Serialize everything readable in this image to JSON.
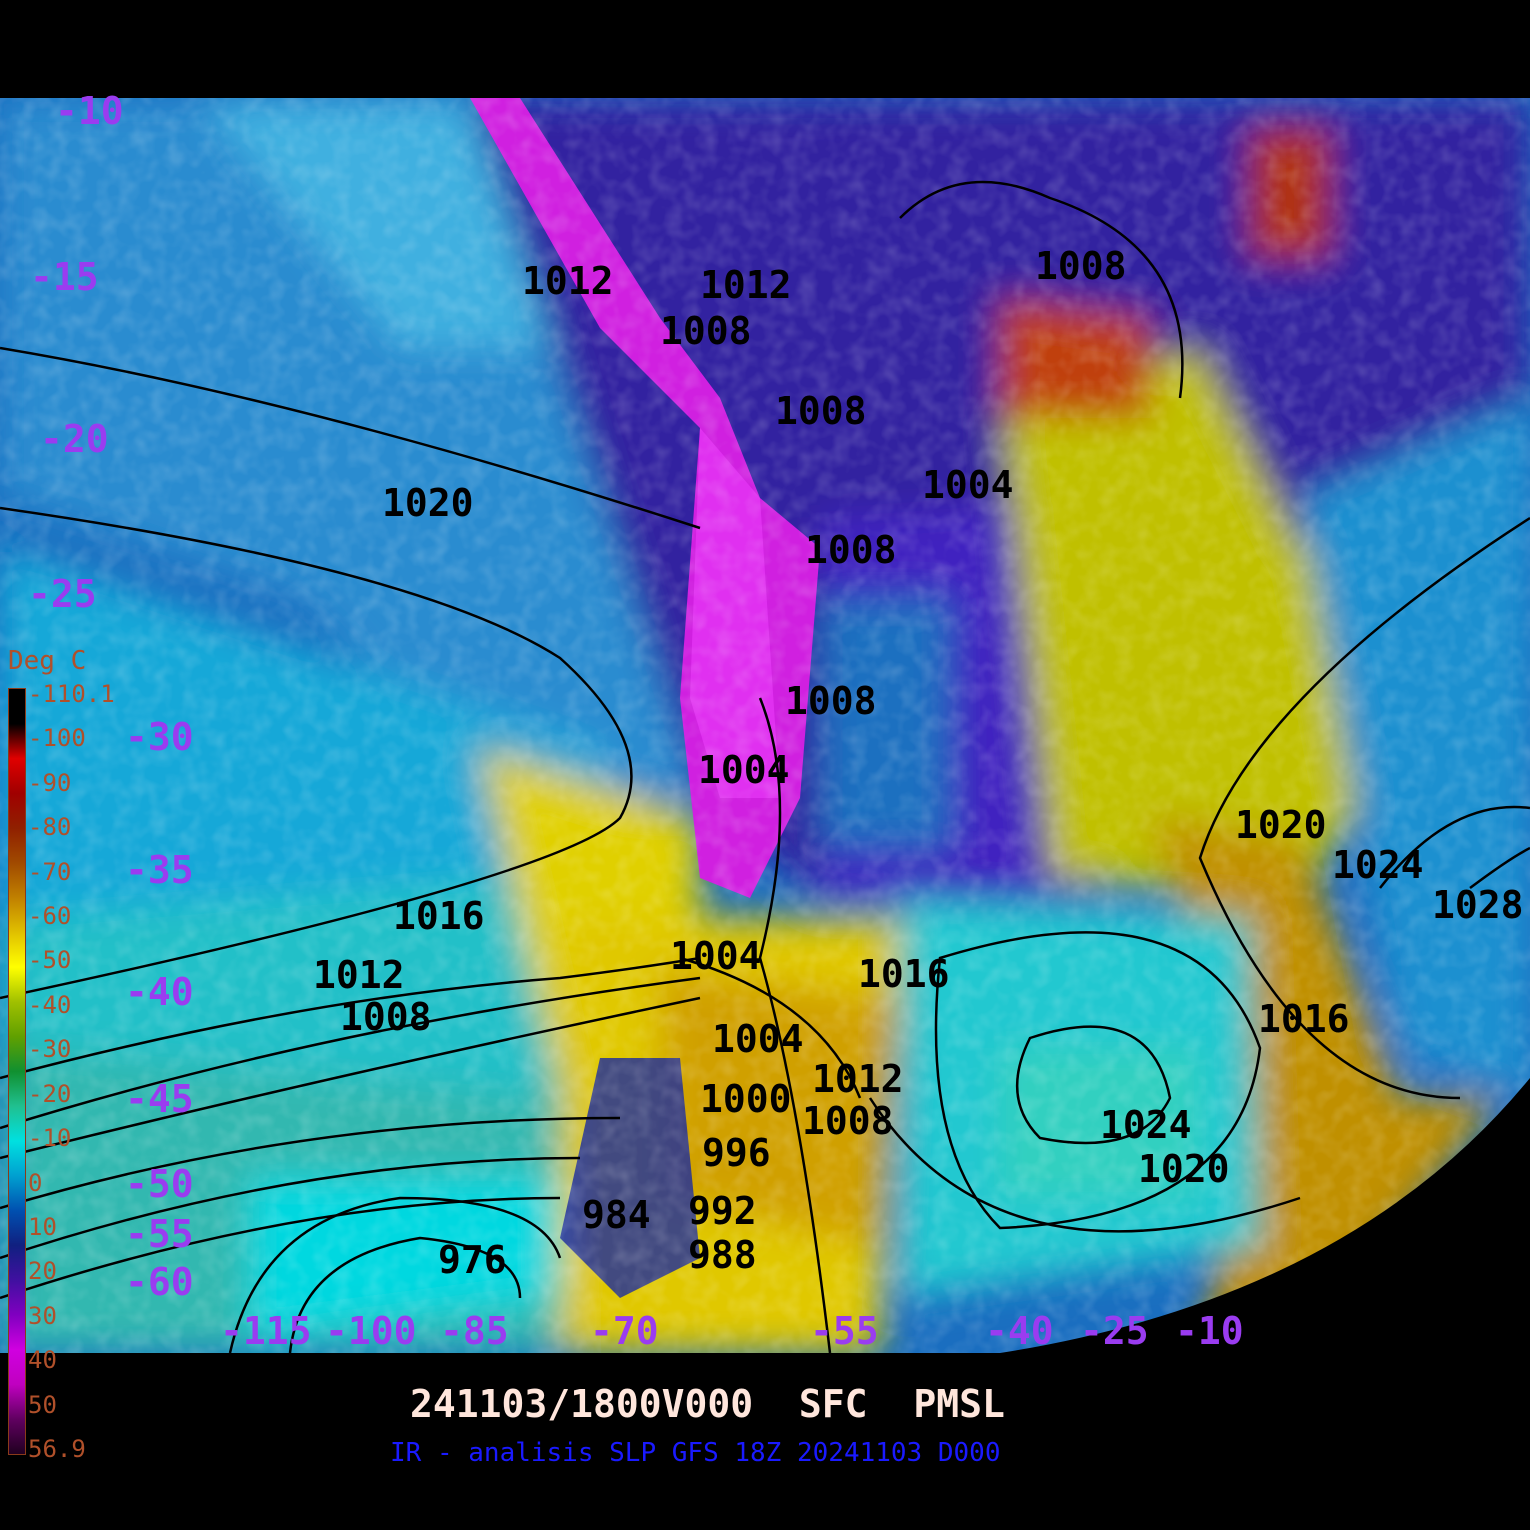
{
  "title": "241103/1800V000  SFC  PMSL",
  "caption": "IR - analisis SLP GFS 18Z 20241103 D000",
  "colorbar": {
    "title": "Deg C",
    "labels": [
      "-110.1",
      "-100",
      "-90",
      "-80",
      "-70",
      "-60",
      "-50",
      "-40",
      "-30",
      "-20",
      "-10",
      "0",
      "10",
      "20",
      "30",
      "40",
      "50",
      "56.9"
    ],
    "colors": [
      "#000000",
      "#000000",
      "#e00000",
      "#a00000",
      "#902000",
      "#a04a00",
      "#c08000",
      "#e0c000",
      "#ffff00",
      "#a0c000",
      "#60a000",
      "#109030",
      "#20c090",
      "#00e0e0",
      "#00a0d0",
      "#0050b0",
      "#102080",
      "#4010a0",
      "#8000c0",
      "#d000e0",
      "#c000c0",
      "#600060",
      "#200020"
    ]
  },
  "latitude_labels": [
    "-10",
    "-15",
    "-20",
    "-25",
    "-30",
    "-35",
    "-40",
    "-45",
    "-50",
    "-55",
    "-60"
  ],
  "longitude_labels": [
    "-115",
    "-100",
    "-85",
    "-70",
    "-55",
    "-40",
    "-25",
    "-10"
  ],
  "isobar_labels": [
    "1012",
    "1012",
    "1008",
    "1008",
    "1008",
    "1004",
    "1020",
    "1008",
    "1008",
    "1004",
    "1020",
    "1024",
    "1028",
    "1016",
    "1004",
    "1016",
    "1012",
    "1008",
    "1004",
    "1012",
    "1000",
    "1008",
    "1016",
    "1024",
    "1020",
    "996",
    "984",
    "992",
    "988",
    "976"
  ]
}
